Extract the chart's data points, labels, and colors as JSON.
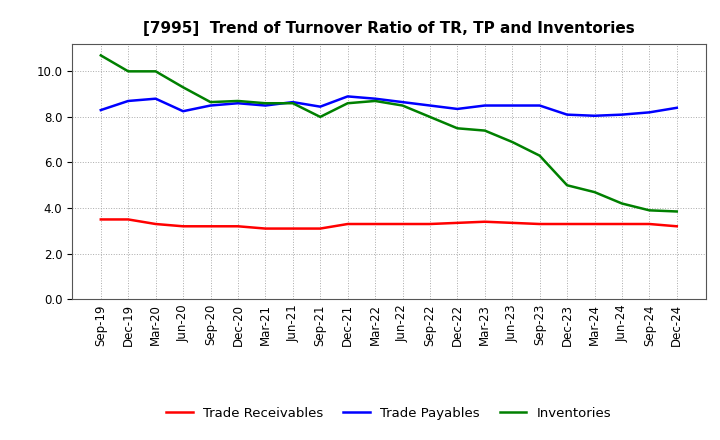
{
  "title": "[7995]  Trend of Turnover Ratio of TR, TP and Inventories",
  "x_labels": [
    "Sep-19",
    "Dec-19",
    "Mar-20",
    "Jun-20",
    "Sep-20",
    "Dec-20",
    "Mar-21",
    "Jun-21",
    "Sep-21",
    "Dec-21",
    "Mar-22",
    "Jun-22",
    "Sep-22",
    "Dec-22",
    "Mar-23",
    "Jun-23",
    "Sep-23",
    "Dec-23",
    "Mar-24",
    "Jun-24",
    "Sep-24",
    "Dec-24"
  ],
  "trade_receivables": [
    3.5,
    3.5,
    3.3,
    3.2,
    3.2,
    3.2,
    3.1,
    3.1,
    3.1,
    3.3,
    3.3,
    3.3,
    3.3,
    3.35,
    3.4,
    3.35,
    3.3,
    3.3,
    3.3,
    3.3,
    3.3,
    3.2
  ],
  "trade_payables": [
    8.3,
    8.7,
    8.8,
    8.25,
    8.5,
    8.6,
    8.5,
    8.65,
    8.45,
    8.9,
    8.8,
    8.65,
    8.5,
    8.35,
    8.5,
    8.5,
    8.5,
    8.1,
    8.05,
    8.1,
    8.2,
    8.4
  ],
  "inventories": [
    10.7,
    10.0,
    10.0,
    9.3,
    8.65,
    8.7,
    8.6,
    8.6,
    8.0,
    8.6,
    8.7,
    8.5,
    8.0,
    7.5,
    7.4,
    6.9,
    6.3,
    5.0,
    4.7,
    4.2,
    3.9,
    3.85
  ],
  "line_colors": {
    "trade_receivables": "#ff0000",
    "trade_payables": "#0000ff",
    "inventories": "#008000"
  },
  "legend_labels": [
    "Trade Receivables",
    "Trade Payables",
    "Inventories"
  ],
  "ylim": [
    0.0,
    11.2
  ],
  "yticks": [
    0.0,
    2.0,
    4.0,
    6.0,
    8.0,
    10.0
  ],
  "grid_color": "#aaaaaa",
  "background_color": "#ffffff",
  "line_width": 1.8,
  "title_fontsize": 11,
  "axis_fontsize": 8.5,
  "legend_fontsize": 9.5
}
